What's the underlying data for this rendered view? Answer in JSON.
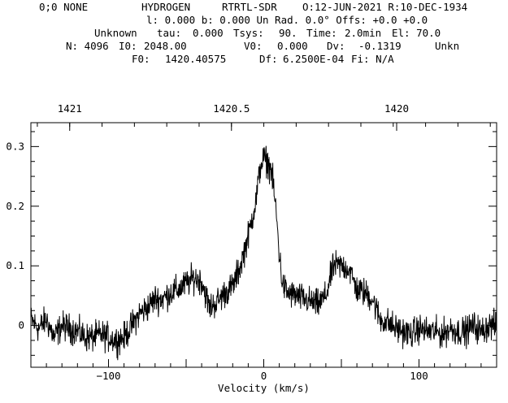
{
  "header": {
    "row1": [
      "0;0 NONE",
      "HYDROGEN",
      "RTRTL-SDR",
      "O:12-JUN-2021 R:10-DEC-1934"
    ],
    "row2": "l: 0.000 b: 0.000 Un Rad. 0.0° Offs: +0.0 +0.0",
    "row3": [
      "Unknown",
      "tau:",
      "0.000",
      "Tsys:",
      "90.",
      "Time:",
      "2.0min",
      "El: 70.0"
    ],
    "row4": [
      "N: 4096",
      "I0:",
      "2048.00",
      "V0:",
      "0.000",
      "Dv:",
      "-0.1319",
      "Unkn"
    ],
    "row5": [
      "F0:",
      "1420.40575",
      "Df:",
      "6.2500E-04",
      "Fi: N/A"
    ]
  },
  "chart_data": {
    "type": "line",
    "xlabel": "Velocity (km/s)",
    "ylabel": "",
    "xlim": [
      -150,
      150
    ],
    "ylim": [
      -0.07,
      0.34
    ],
    "x_ticks": [
      -100,
      0,
      100
    ],
    "x_tick_labels": [
      "−100",
      "0",
      "100"
    ],
    "y_ticks": [
      0,
      0.1,
      0.2,
      0.3
    ],
    "y_tick_labels": [
      "0",
      "0.1",
      "0.2",
      "0.3"
    ],
    "top_axis": {
      "label": "",
      "ticks": [
        1421,
        1420.5,
        1420
      ],
      "tick_labels": [
        "1421",
        "1420.5",
        "1420"
      ],
      "x_positions_kms": [
        -125.0,
        -20.8,
        85.6
      ]
    },
    "grid": false,
    "series": [
      {
        "values_note": "",
        "x": [
          -150,
          -145,
          -140,
          -135,
          -130,
          -125,
          -120,
          -115,
          -110,
          -105,
          -100,
          -95,
          -90,
          -85,
          -80,
          -75,
          -70,
          -65,
          -60,
          -55,
          -50,
          -45,
          -40,
          -35,
          -30,
          -25,
          -20,
          -15,
          -10,
          -5,
          -2,
          0,
          2,
          5,
          8,
          10,
          12,
          15,
          20,
          25,
          30,
          35,
          40,
          45,
          50,
          55,
          60,
          65,
          70,
          75,
          80,
          85,
          90,
          95,
          100,
          105,
          110,
          115,
          120,
          125,
          130,
          135,
          140,
          145,
          150
        ],
        "y": [
          0.01,
          -0.005,
          0.01,
          -0.02,
          0.0,
          -0.005,
          -0.01,
          -0.02,
          -0.02,
          -0.015,
          -0.02,
          -0.025,
          -0.02,
          0.0,
          0.02,
          0.03,
          0.045,
          0.045,
          0.055,
          0.06,
          0.07,
          0.08,
          0.075,
          0.03,
          0.04,
          0.055,
          0.065,
          0.1,
          0.15,
          0.21,
          0.27,
          0.28,
          0.275,
          0.26,
          0.19,
          0.12,
          0.07,
          0.055,
          0.05,
          0.045,
          0.04,
          0.035,
          0.05,
          0.1,
          0.1,
          0.095,
          0.06,
          0.055,
          0.045,
          0.01,
          0.005,
          -0.005,
          -0.01,
          -0.015,
          -0.005,
          -0.01,
          -0.01,
          -0.015,
          -0.005,
          -0.01,
          -0.01,
          0.0,
          -0.01,
          0.0,
          0.0
        ]
      }
    ]
  }
}
